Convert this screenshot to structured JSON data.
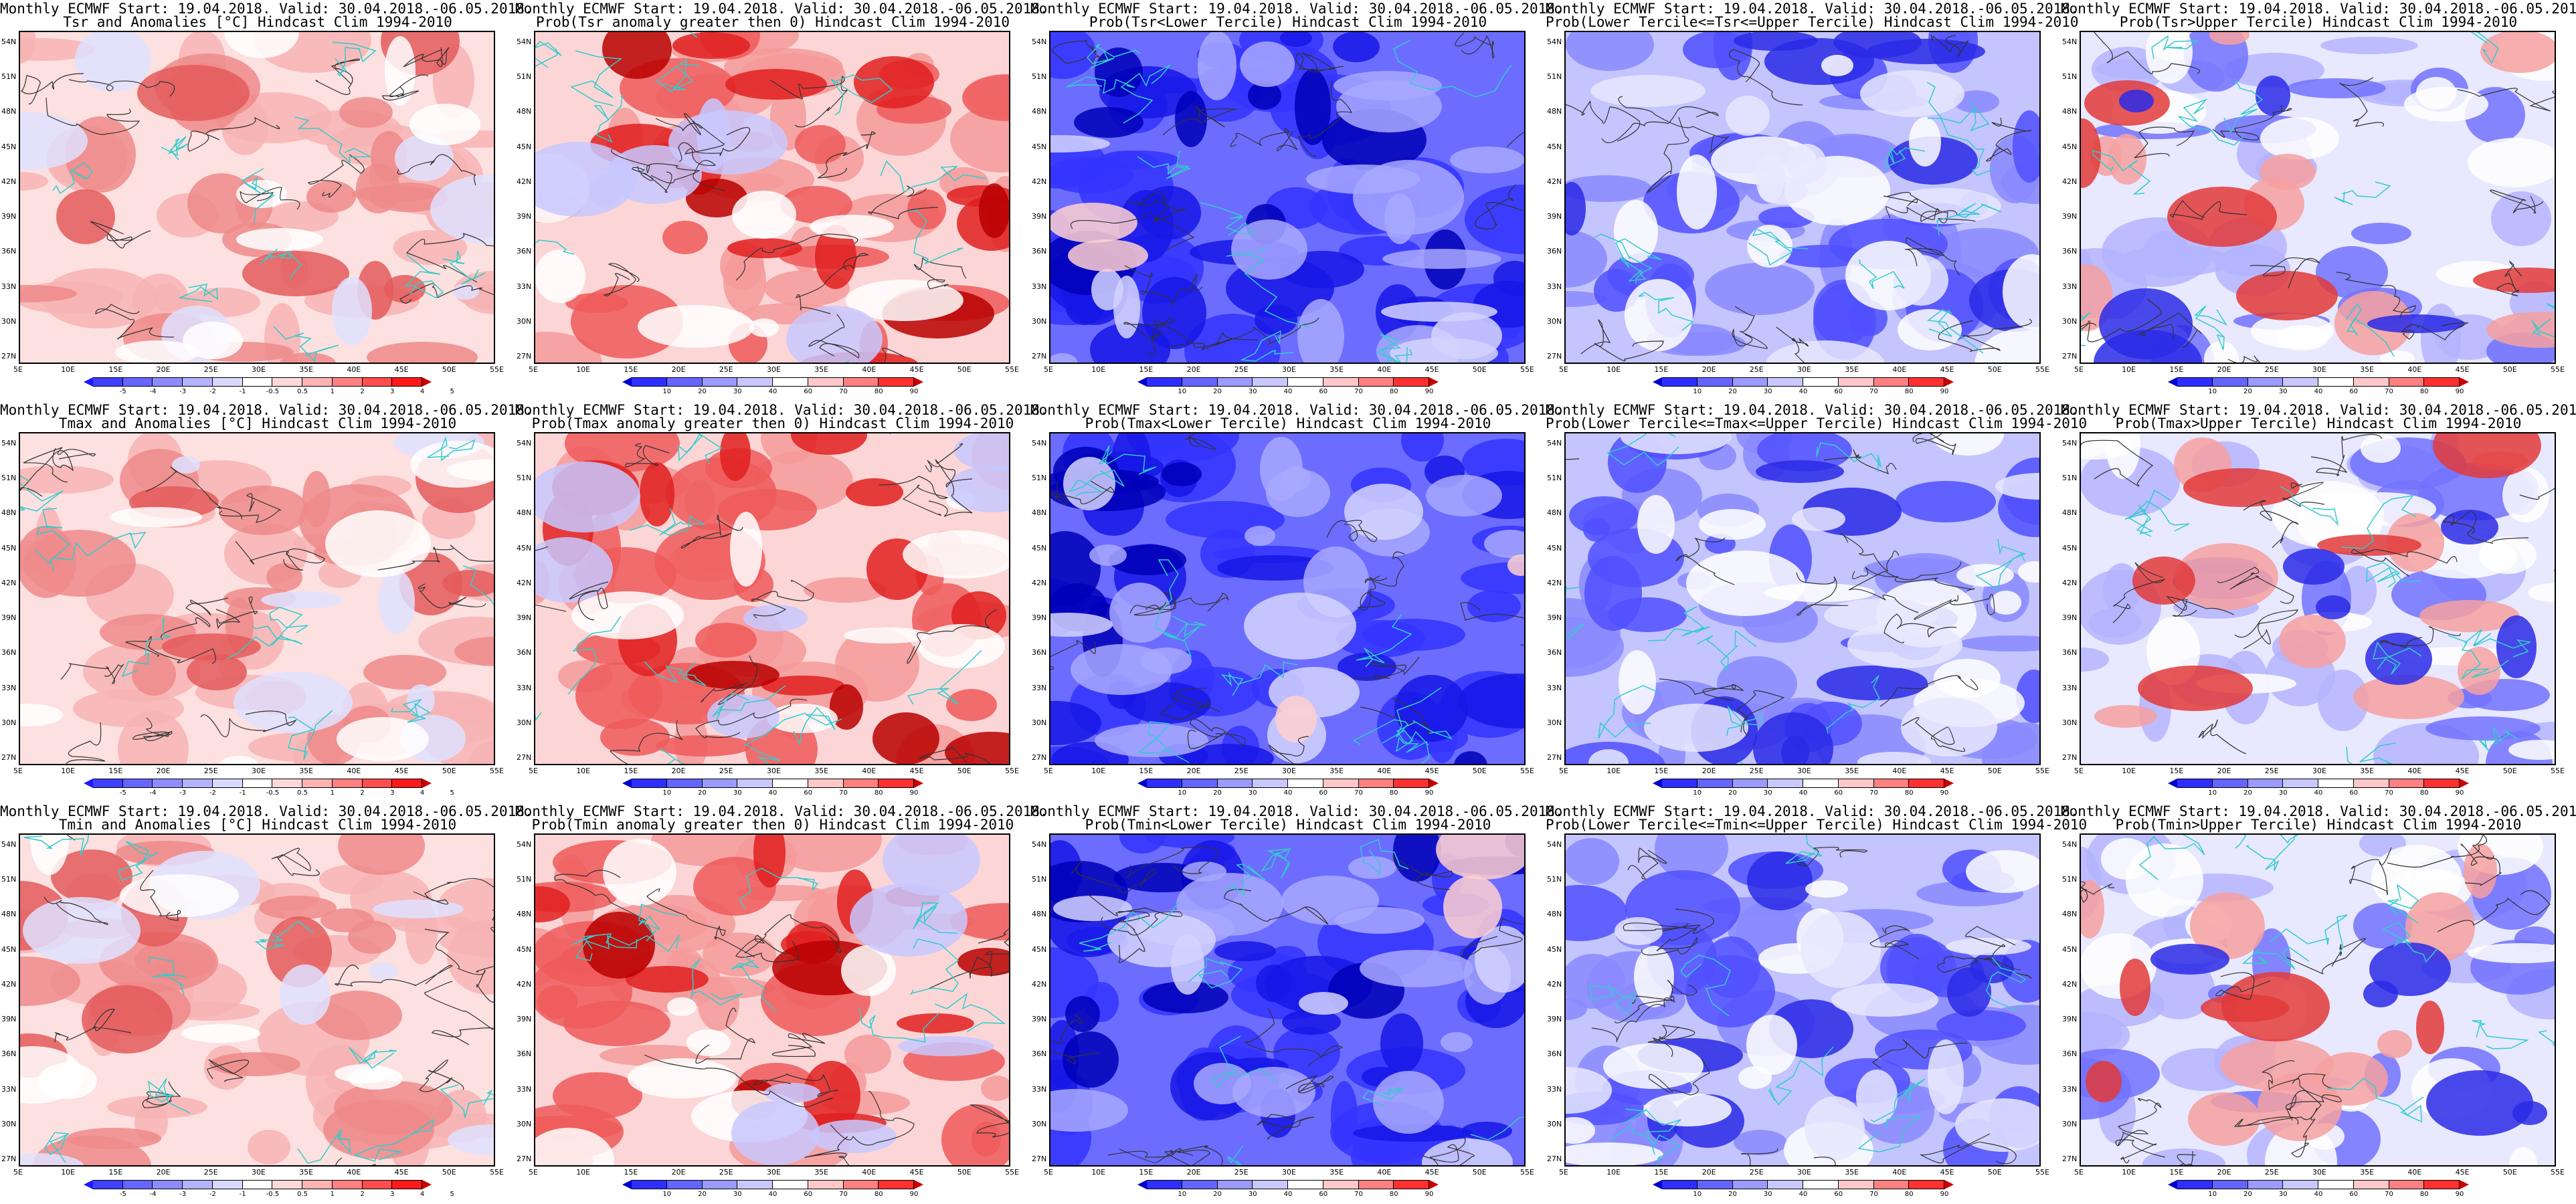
{
  "header_line": "Monthly ECMWF Start: 19.04.2018. Valid: 30.04.2018.-06.05.2018.",
  "columns": [
    {
      "scheme": "anomaly",
      "titles": [
        "Tsr and Anomalies [°C] Hindcast Clim 1994-2010",
        "Tmax and Anomalies [°C] Hindcast Clim 1994-2010",
        "Tmin and Anomalies [°C] Hindcast Clim 1994-2010"
      ]
    },
    {
      "scheme": "prob_warm",
      "titles": [
        "Prob(Tsr anomaly greater then 0) Hindcast Clim 1994-2010",
        "Prob(Tmax anomaly greater then 0) Hindcast Clim 1994-2010",
        "Prob(Tmin anomaly greater then 0) Hindcast Clim 1994-2010"
      ]
    },
    {
      "scheme": "prob_cold",
      "titles": [
        "Prob(Tsr<Lower Tercile) Hindcast Clim 1994-2010",
        "Prob(Tmax<Lower Tercile) Hindcast Clim 1994-2010",
        "Prob(Tmin<Lower Tercile) Hindcast Clim 1994-2010"
      ]
    },
    {
      "scheme": "prob_mid",
      "titles": [
        "Prob(Lower Tercile<=Tsr<=Upper Tercile) Hindcast Clim 1994-2010",
        "Prob(Lower Tercile<=Tmax<=Upper Tercile) Hindcast Clim 1994-2010",
        "Prob(Lower Tercile<=Tmin<=Upper Tercile) Hindcast Clim 1994-2010"
      ]
    },
    {
      "scheme": "prob_upper",
      "titles": [
        "Prob(Tsr>Upper Tercile) Hindcast Clim 1994-2010",
        "Prob(Tmax>Upper Tercile) Hindcast Clim 1994-2010",
        "Prob(Tmin>Upper Tercile) Hindcast Clim 1994-2010"
      ]
    }
  ],
  "x_ticks": [
    "5E",
    "10E",
    "15E",
    "20E",
    "25E",
    "30E",
    "35E",
    "40E",
    "45E",
    "50E",
    "55E"
  ],
  "y_ticks": [
    "54N",
    "51N",
    "48N",
    "45N",
    "42N",
    "39N",
    "36N",
    "33N",
    "30N",
    "27N"
  ],
  "colorbars": {
    "anomaly": {
      "labels": [
        "-5",
        "-4",
        "-3",
        "-2",
        "-1",
        "-0.5",
        "0.5",
        "1",
        "2",
        "3",
        "4",
        "5"
      ],
      "colors": [
        "#1a1aff",
        "#4040ff",
        "#6666ff",
        "#8c8cff",
        "#b3b3ff",
        "#d9d9ff",
        "#ffffff",
        "#ffd9d9",
        "#ffb3b3",
        "#ff8080",
        "#ff4d4d",
        "#ff1a1a",
        "#cc0000"
      ]
    },
    "prob": {
      "labels": [
        "10",
        "20",
        "30",
        "40",
        "60",
        "70",
        "80",
        "90"
      ],
      "colors": [
        "#0000cc",
        "#2e2eff",
        "#6464ff",
        "#9a9aff",
        "#c8c8ff",
        "#ffffff",
        "#ffc8c8",
        "#ff8080",
        "#ff3030",
        "#cc0000"
      ]
    }
  },
  "legend_colors": {
    "coast": "#33cccc",
    "contour": "#333333"
  }
}
